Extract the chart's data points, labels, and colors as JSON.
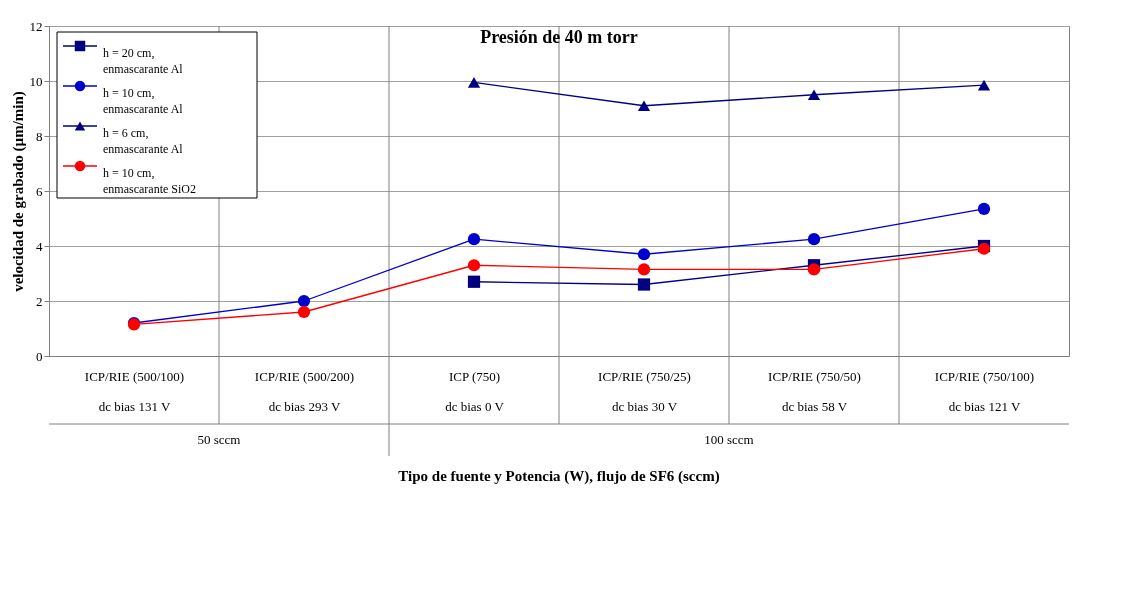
{
  "chart_data": {
    "type": "line",
    "title": "Presión de 40 m torr",
    "xlabel": "Tipo de fuente y Potencia (W), flujo de SF6 (sccm)",
    "ylabel": "velocidad de grabado (µm/min)",
    "categories": [
      "ICP/RIE (500/100)\ndc bias 131 V",
      "ICP/RIE (500/200)\ndc bias 293 V",
      "ICP (750)\ndc bias 0 V",
      "ICP/RIE (750/25)\ndc bias 30 V",
      "ICP/RIE (750/50)\ndc bias 58 V",
      "ICP/RIE (750/100)\ndc bias 121 V"
    ],
    "annotations": [
      "50 sccm",
      "100 sccm"
    ],
    "series": [
      {
        "name": "h = 20 cm,\nenmascarante Al",
        "color": "#000080",
        "marker": "square",
        "values": [
          null,
          null,
          2.7,
          2.6,
          3.3,
          4.0
        ]
      },
      {
        "name": "h = 10 cm,\nenmascarante Al",
        "color": "#0000cc",
        "marker": "circle",
        "values": [
          1.2,
          2.0,
          4.25,
          3.7,
          4.25,
          5.35
        ]
      },
      {
        "name": "h = 6 cm,\nenmascarante Al",
        "color": "#000080",
        "marker": "triangle",
        "values": [
          null,
          null,
          9.95,
          9.1,
          9.5,
          9.85
        ]
      },
      {
        "name": "h = 10 cm,\nenmascarante SiO2",
        "color": "#ff0000",
        "marker": "circle",
        "values": [
          1.15,
          1.6,
          3.3,
          3.15,
          3.15,
          3.9
        ]
      }
    ],
    "ylim": [
      0,
      12
    ],
    "yticks": [
      0,
      2,
      4,
      6,
      8,
      10,
      12
    ],
    "grid": true,
    "legend": "top left",
    "line_style": "solid"
  }
}
